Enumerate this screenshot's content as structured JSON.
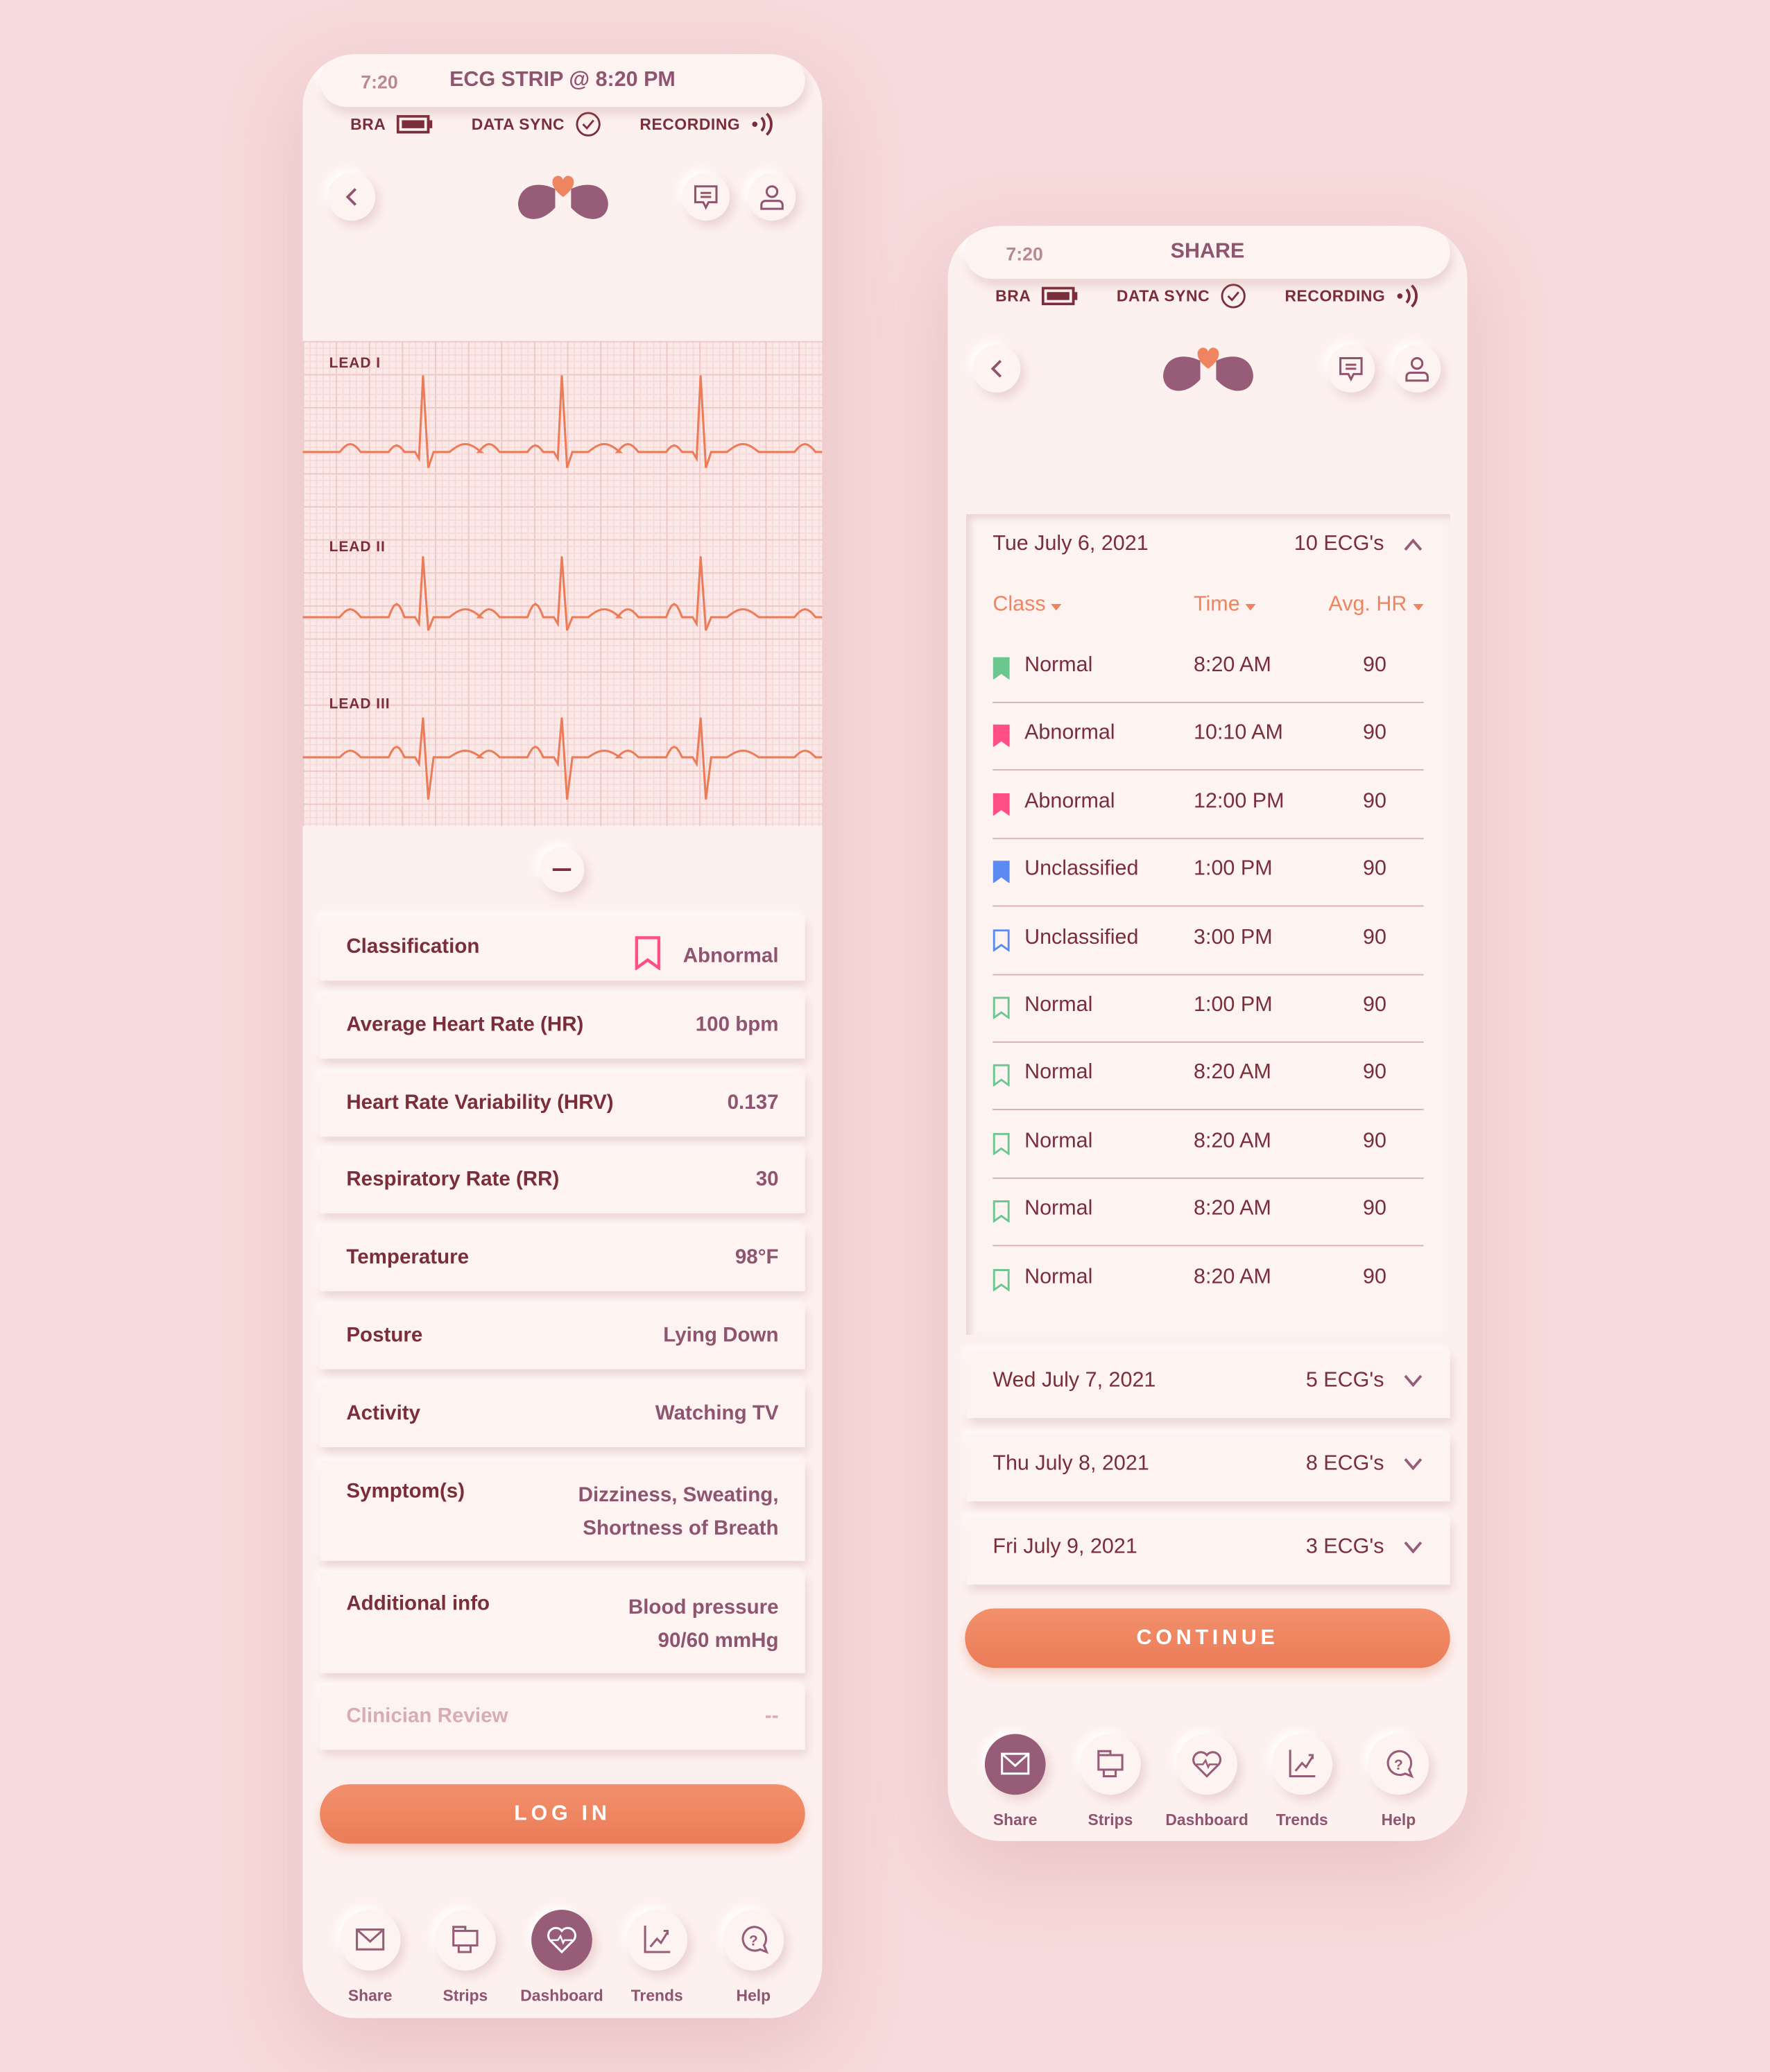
{
  "colors": {
    "background": "#f7dadb",
    "accent": "#ef8460",
    "brand": "#965c78",
    "text": "#7a2e3a",
    "normal": "#6cc690",
    "abnormal": "#ff4f86",
    "unclassified": "#5b8bf2"
  },
  "status": {
    "time": "7:20",
    "bra": "BRA",
    "data_sync": "DATA SYNC",
    "recording": "RECORDING"
  },
  "left": {
    "title": "ECG STRIP @ 8:20 PM",
    "leads": [
      "LEAD I",
      "LEAD II",
      "LEAD III"
    ],
    "collapse_icon": "minus-icon",
    "fields": [
      {
        "label": "Classification",
        "value": "Abnormal",
        "icon": "bookmark-outline-pink"
      },
      {
        "label": "Average Heart Rate (HR)",
        "value": "100 bpm"
      },
      {
        "label": "Heart Rate Variability (HRV)",
        "value": "0.137"
      },
      {
        "label": "Respiratory Rate (RR)",
        "value": "30"
      },
      {
        "label": "Temperature",
        "value": "98°F"
      },
      {
        "label": "Posture",
        "value": "Lying Down"
      },
      {
        "label": "Activity",
        "value": "Watching TV"
      },
      {
        "label": "Symptom(s)",
        "value_line1": "Dizziness, Sweating,",
        "value_line2": "Shortness of Breath"
      },
      {
        "label": "Additional info",
        "value_line1": "Blood pressure",
        "value_line2": "90/60 mmHg"
      },
      {
        "label": "Clinician Review",
        "value": "--"
      }
    ],
    "button": "LOG IN",
    "active_nav": "Dashboard"
  },
  "right": {
    "title": "SHARE",
    "expanded": {
      "date": "Tue July 6, 2021",
      "count": "10 ECG's"
    },
    "columns": [
      "Class",
      "Time",
      "Avg. HR"
    ],
    "rows": [
      {
        "class": "Normal",
        "time": "8:20 AM",
        "hr": "90",
        "color": "#6cc690",
        "filled": true
      },
      {
        "class": "Abnormal",
        "time": "10:10 AM",
        "hr": "90",
        "color": "#ff4f86",
        "filled": true
      },
      {
        "class": "Abnormal",
        "time": "12:00 PM",
        "hr": "90",
        "color": "#ff4f86",
        "filled": true
      },
      {
        "class": "Unclassified",
        "time": "1:00 PM",
        "hr": "90",
        "color": "#5b8bf2",
        "filled": true
      },
      {
        "class": "Unclassified",
        "time": "3:00 PM",
        "hr": "90",
        "color": "#5b8bf2",
        "filled": false
      },
      {
        "class": "Normal",
        "time": "1:00 PM",
        "hr": "90",
        "color": "#6cc690",
        "filled": false
      },
      {
        "class": "Normal",
        "time": "8:20 AM",
        "hr": "90",
        "color": "#6cc690",
        "filled": false
      },
      {
        "class": "Normal",
        "time": "8:20 AM",
        "hr": "90",
        "color": "#6cc690",
        "filled": false
      },
      {
        "class": "Normal",
        "time": "8:20 AM",
        "hr": "90",
        "color": "#6cc690",
        "filled": false
      },
      {
        "class": "Normal",
        "time": "8:20 AM",
        "hr": "90",
        "color": "#6cc690",
        "filled": false
      }
    ],
    "collapsed": [
      {
        "date": "Wed July 7, 2021",
        "count": "5 ECG's"
      },
      {
        "date": "Thu July 8, 2021",
        "count": "8 ECG's"
      },
      {
        "date": "Fri July 9, 2021",
        "count": "3 ECG's"
      }
    ],
    "button": "CONTINUE",
    "active_nav": "Share"
  },
  "nav": [
    {
      "label": "Share",
      "icon": "envelope-icon"
    },
    {
      "label": "Strips",
      "icon": "strips-icon"
    },
    {
      "label": "Dashboard",
      "icon": "heart-pulse-icon"
    },
    {
      "label": "Trends",
      "icon": "trend-chart-icon"
    },
    {
      "label": "Help",
      "icon": "help-bubble-icon"
    }
  ]
}
